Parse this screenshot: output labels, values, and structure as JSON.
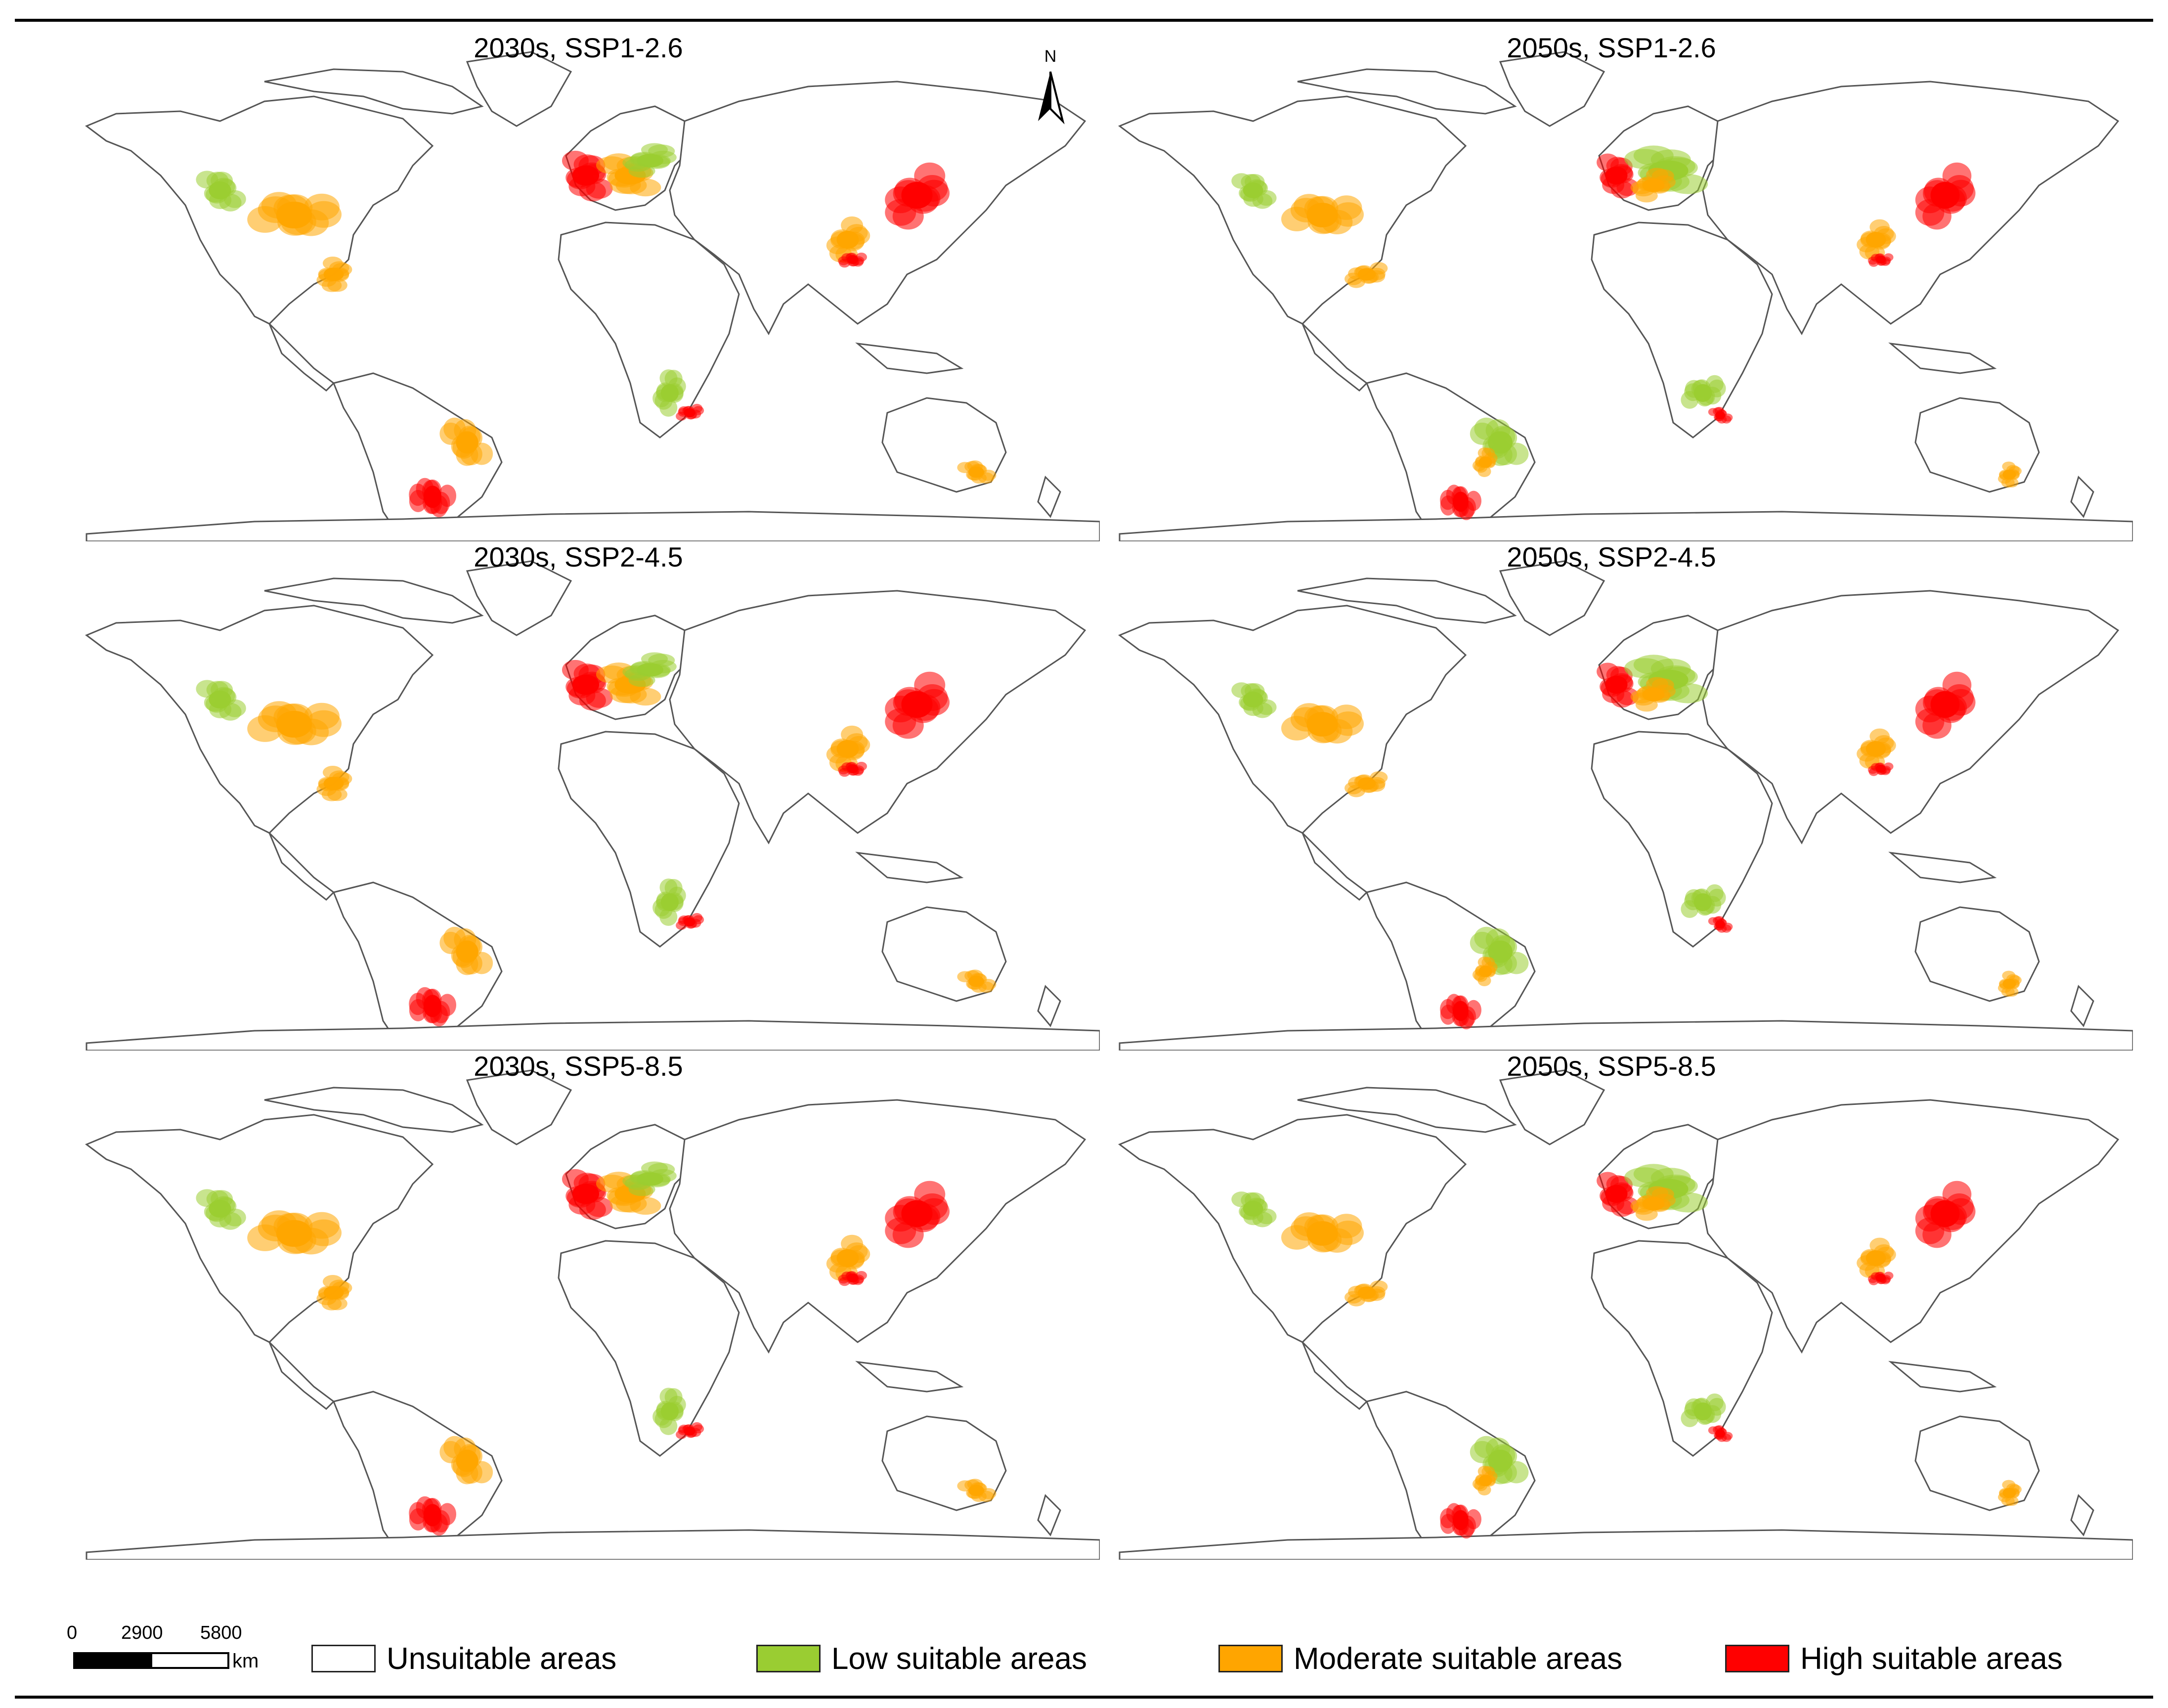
{
  "figure": {
    "panels": [
      {
        "title": "2030s, SSP1-2.6"
      },
      {
        "title": "2050s, SSP1-2.6"
      },
      {
        "title": "2030s, SSP2-4.5"
      },
      {
        "title": "2050s, SSP2-4.5"
      },
      {
        "title": "2030s, SSP5-8.5"
      },
      {
        "title": "2050s, SSP5-8.5"
      }
    ],
    "north_arrow": {
      "label": "N",
      "icon": "north-arrow-icon"
    },
    "scale_bar": {
      "ticks": [
        "0",
        "2900",
        "5800"
      ],
      "unit": "km"
    },
    "legend": [
      {
        "label": "Unsuitable areas",
        "color": "#ffffff"
      },
      {
        "label": "Low suitable areas",
        "color": "#9acd32"
      },
      {
        "label": "Moderate suitable areas",
        "color": "#ffa500"
      },
      {
        "label": "High suitable areas",
        "color": "#ff0000"
      }
    ]
  }
}
